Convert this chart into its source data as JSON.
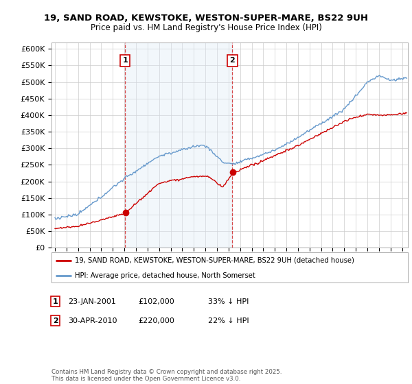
{
  "title": "19, SAND ROAD, KEWSTOKE, WESTON-SUPER-MARE, BS22 9UH",
  "subtitle": "Price paid vs. HM Land Registry's House Price Index (HPI)",
  "ylabel_ticks": [
    "£0",
    "£50K",
    "£100K",
    "£150K",
    "£200K",
    "£250K",
    "£300K",
    "£350K",
    "£400K",
    "£450K",
    "£500K",
    "£550K",
    "£600K"
  ],
  "ytick_values": [
    0,
    50000,
    100000,
    150000,
    200000,
    250000,
    300000,
    350000,
    400000,
    450000,
    500000,
    550000,
    600000
  ],
  "legend_red": "19, SAND ROAD, KEWSTOKE, WESTON-SUPER-MARE, BS22 9UH (detached house)",
  "legend_blue": "HPI: Average price, detached house, North Somerset",
  "marker1_year": 2001.063,
  "marker1_price": 102000,
  "marker2_year": 2010.328,
  "marker2_price": 220000,
  "footer": "Contains HM Land Registry data © Crown copyright and database right 2025.\nThis data is licensed under the Open Government Licence v3.0.",
  "background_color": "#ffffff",
  "plot_bg_color": "#ffffff",
  "shade_color": "#dce9f5",
  "grid_color": "#cccccc",
  "red_color": "#cc0000",
  "blue_color": "#6699cc",
  "vline_color": "#cc0000",
  "xlim_start": 1994.7,
  "xlim_end": 2025.5,
  "ylim_min": 0,
  "ylim_max": 620000,
  "marker1_date_str": "23-JAN-2001",
  "marker2_date_str": "30-APR-2010",
  "marker1_info": "33% ↓ HPI",
  "marker2_info": "22% ↓ HPI"
}
